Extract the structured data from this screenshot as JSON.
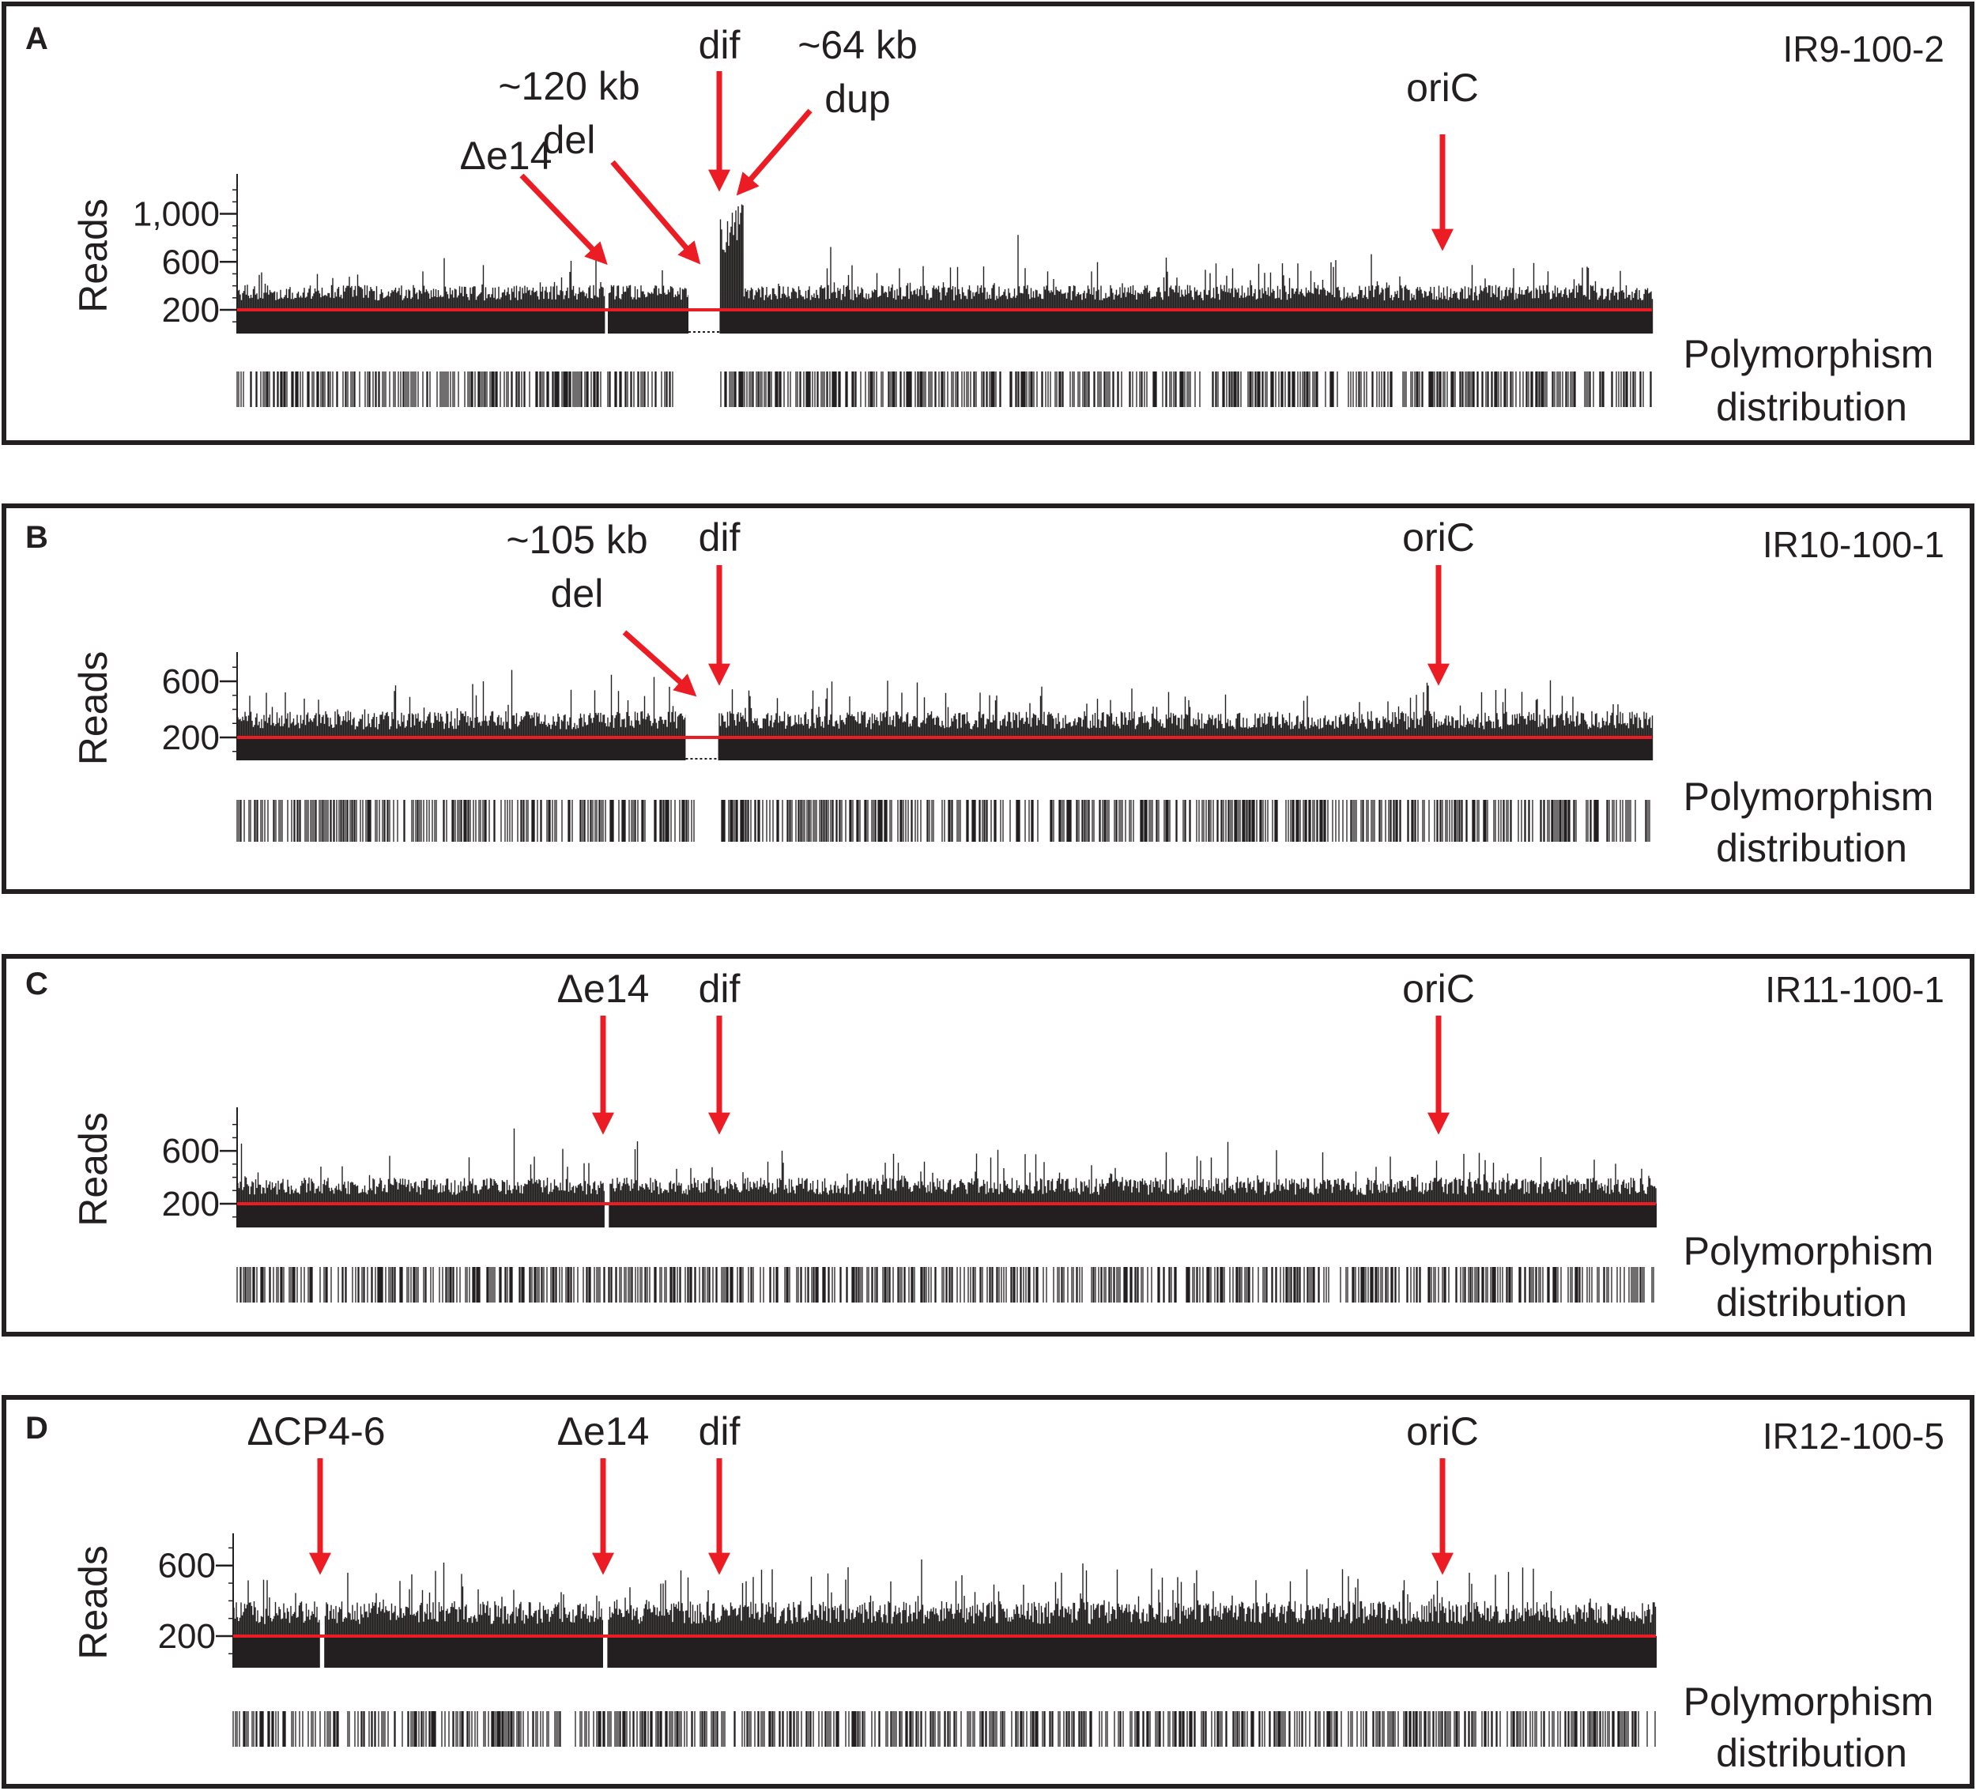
{
  "figure": {
    "page_title": "",
    "ylabel": "Reads",
    "poly_label_line1": "Polymorphism",
    "poly_label_line2": "distribution"
  },
  "chart_data": [
    {
      "type": "bar",
      "panel": "A",
      "sample": "IR9-100-2",
      "ylabel": "Reads",
      "yticks": [
        200,
        600,
        1000
      ],
      "ytick_labels": [
        "200",
        "600",
        "1,000"
      ],
      "ylim": [
        0,
        1300
      ],
      "xlim": [
        0,
        1
      ],
      "reference_line": 200,
      "reference_color": "#ec1c24",
      "bar_color": "#231f20",
      "baseline_reads": 330,
      "deleted_regions": [
        {
          "start": 0.319,
          "end": 0.341,
          "label": "~120 kb del",
          "reads": 0
        },
        {
          "start": 0.26,
          "end": 0.262,
          "label": "Δe14",
          "reads": 0
        }
      ],
      "elevated_regions": [
        {
          "start": 0.341,
          "end": 0.357,
          "label": "~64 kb dup",
          "reads": 900
        }
      ],
      "annotations": [
        {
          "label": "Δe14",
          "position": 0.254
        },
        {
          "label": "~120 kb del",
          "position": 0.319
        },
        {
          "label": "dif",
          "position": 0.34
        },
        {
          "label": "~64 kb dup",
          "position": 0.355
        },
        {
          "label": "oriC",
          "position": 0.851
        }
      ],
      "polymorphism_gaps": [
        [
          0.314,
          0.341
        ]
      ]
    },
    {
      "type": "bar",
      "panel": "B",
      "sample": "IR10-100-1",
      "ylabel": "Reads",
      "yticks": [
        200,
        600
      ],
      "ytick_labels": [
        "200",
        "600"
      ],
      "ylim": [
        0,
        780
      ],
      "xlim": [
        0,
        1
      ],
      "reference_line": 200,
      "reference_color": "#ec1c24",
      "bar_color": "#231f20",
      "baseline_reads": 310,
      "deleted_regions": [
        {
          "start": 0.317,
          "end": 0.34,
          "label": "~105 kb del",
          "reads": 0
        }
      ],
      "elevated_regions": [],
      "annotations": [
        {
          "label": "~105 kb del",
          "position": 0.317
        },
        {
          "label": "dif",
          "position": 0.342
        },
        {
          "label": "oriC",
          "position": 0.852
        }
      ],
      "polymorphism_gaps": [
        [
          0.324,
          0.34
        ]
      ]
    },
    {
      "type": "bar",
      "panel": "C",
      "sample": "IR11-100-1",
      "ylabel": "Reads",
      "yticks": [
        200,
        600
      ],
      "ytick_labels": [
        "200",
        "600"
      ],
      "ylim": [
        0,
        900
      ],
      "xlim": [
        0,
        1
      ],
      "reference_line": 200,
      "reference_color": "#ec1c24",
      "bar_color": "#231f20",
      "baseline_reads": 320,
      "deleted_regions": [
        {
          "start": 0.259,
          "end": 0.262,
          "label": "Δe14",
          "reads": 0
        }
      ],
      "elevated_regions": [],
      "annotations": [
        {
          "label": "Δe14",
          "position": 0.26
        },
        {
          "label": "dif",
          "position": 0.342
        },
        {
          "label": "oriC",
          "position": 0.85
        }
      ],
      "polymorphism_gaps": []
    },
    {
      "type": "bar",
      "panel": "D",
      "sample": "IR12-100-5",
      "ylabel": "Reads",
      "yticks": [
        200,
        600
      ],
      "ytick_labels": [
        "200",
        "600"
      ],
      "ylim": [
        0,
        760
      ],
      "xlim": [
        0,
        1
      ],
      "reference_line": 200,
      "reference_color": "#ec1c24",
      "bar_color": "#231f20",
      "baseline_reads": 320,
      "deleted_regions": [
        {
          "start": 0.061,
          "end": 0.064,
          "label": "ΔCP4-6",
          "reads": 0
        },
        {
          "start": 0.26,
          "end": 0.263,
          "label": "Δe14",
          "reads": 0
        }
      ],
      "elevated_regions": [],
      "annotations": [
        {
          "label": "ΔCP4-6",
          "position": 0.063
        },
        {
          "label": "Δe14",
          "position": 0.261
        },
        {
          "label": "dif",
          "position": 0.342
        },
        {
          "label": "oriC",
          "position": 0.85
        }
      ],
      "polymorphism_gaps": []
    }
  ]
}
